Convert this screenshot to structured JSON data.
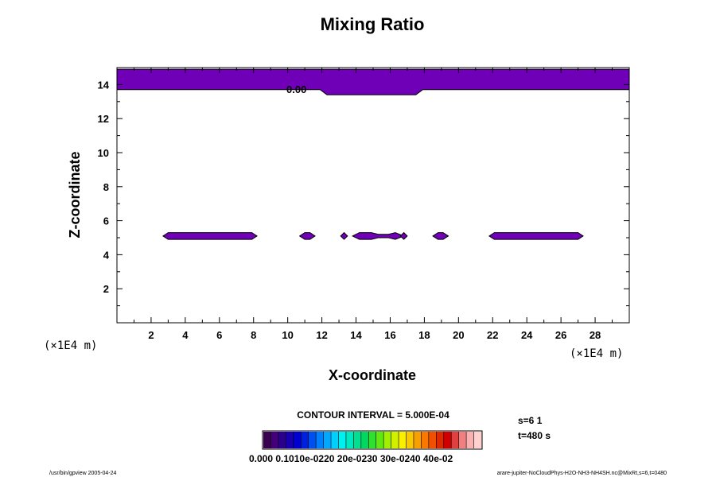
{
  "chart_data": {
    "type": "contour",
    "title": "Mixing Ratio",
    "xlabel": "X-coordinate",
    "ylabel": "Z-coordinate",
    "x_unit": "(×1E4 m)",
    "y_unit": "(×1E4 m)",
    "xlim": [
      0,
      30
    ],
    "ylim": [
      0,
      15
    ],
    "xticks": [
      "2",
      "4",
      "6",
      "8",
      "10",
      "12",
      "14",
      "16",
      "18",
      "20",
      "22",
      "24",
      "26",
      "28"
    ],
    "yticks": [
      "2",
      "4",
      "6",
      "8",
      "10",
      "12",
      "14"
    ],
    "contour_label": "0.00",
    "contour_interval": "CONTOUR INTERVAL = 5.000E-04",
    "fill_color": "#7000b8",
    "regions": [
      {
        "points": [
          [
            0,
            13.7
          ],
          [
            11.9,
            13.7
          ],
          [
            12.3,
            13.4
          ],
          [
            17.5,
            13.4
          ],
          [
            17.9,
            13.7
          ],
          [
            30,
            13.7
          ],
          [
            30,
            14.9
          ],
          [
            0,
            14.9
          ]
        ]
      },
      {
        "points": [
          [
            2.7,
            5.1
          ],
          [
            3.0,
            4.9
          ],
          [
            7.9,
            4.9
          ],
          [
            8.2,
            5.1
          ],
          [
            7.9,
            5.3
          ],
          [
            3.0,
            5.3
          ]
        ]
      },
      {
        "points": [
          [
            10.7,
            5.1
          ],
          [
            11.0,
            4.9
          ],
          [
            11.3,
            4.9
          ],
          [
            11.6,
            5.1
          ],
          [
            11.3,
            5.3
          ],
          [
            11.0,
            5.3
          ]
        ]
      },
      {
        "points": [
          [
            13.1,
            5.1
          ],
          [
            13.3,
            4.9
          ],
          [
            13.5,
            5.1
          ],
          [
            13.3,
            5.3
          ]
        ]
      },
      {
        "points": [
          [
            13.8,
            5.1
          ],
          [
            14.2,
            4.9
          ],
          [
            14.9,
            4.9
          ],
          [
            15.3,
            5.0
          ],
          [
            15.9,
            5.0
          ],
          [
            16.3,
            4.9
          ],
          [
            16.8,
            5.1
          ],
          [
            16.3,
            5.3
          ],
          [
            15.9,
            5.2
          ],
          [
            15.3,
            5.2
          ],
          [
            14.9,
            5.3
          ],
          [
            14.2,
            5.3
          ]
        ]
      },
      {
        "points": [
          [
            16.6,
            5.1
          ],
          [
            16.8,
            4.9
          ],
          [
            17.0,
            5.1
          ],
          [
            16.8,
            5.3
          ]
        ]
      },
      {
        "points": [
          [
            18.5,
            5.1
          ],
          [
            18.8,
            4.9
          ],
          [
            19.1,
            4.9
          ],
          [
            19.4,
            5.1
          ],
          [
            19.1,
            5.3
          ],
          [
            18.8,
            5.3
          ]
        ]
      },
      {
        "points": [
          [
            21.8,
            5.1
          ],
          [
            22.1,
            4.9
          ],
          [
            27.0,
            4.9
          ],
          [
            27.3,
            5.1
          ],
          [
            27.0,
            5.3
          ],
          [
            22.1,
            5.3
          ]
        ]
      }
    ],
    "colorbar": {
      "colors": [
        "#3a0050",
        "#44007a",
        "#2a008c",
        "#1800b0",
        "#0000d0",
        "#0020e0",
        "#0050f0",
        "#0080ff",
        "#00a8ff",
        "#00d0ff",
        "#00f0f0",
        "#00e8c0",
        "#00e090",
        "#00d860",
        "#30e030",
        "#60e810",
        "#a0f000",
        "#d0f000",
        "#f8f000",
        "#f8c800",
        "#f8a000",
        "#f87800",
        "#f05000",
        "#e02800",
        "#d00000",
        "#e04040",
        "#f08080",
        "#f8b0b0",
        "#ffd0d0"
      ],
      "labels": "0.000 0.1010e-0220 20e-0230 30e-0240 40e-02"
    },
    "info_s": "s=6 1",
    "info_t": "t=480 s",
    "footer_left": "/usr/bin/gpview 2005-04-24",
    "footer_right": "arare-jupiter-NoCloudPhys-H2O-NH3-NH4SH.nc@MixRt,s=6,t=0480"
  }
}
